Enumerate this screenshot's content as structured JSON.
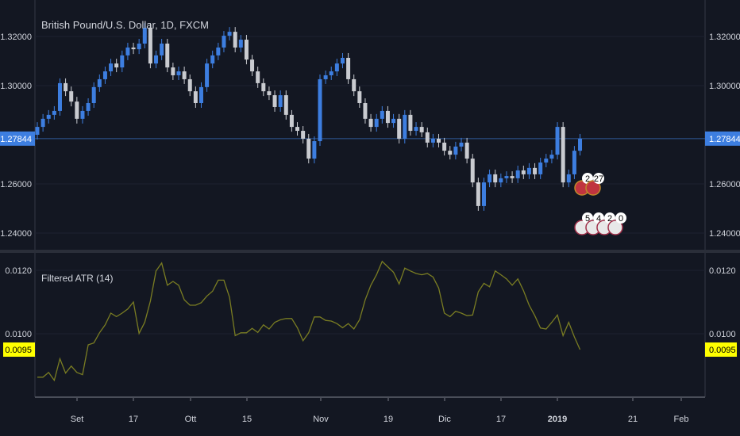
{
  "header": {
    "title": "British Pound/U.S. Dollar, 1D, FXCM"
  },
  "indicator": {
    "title": "Filtered ATR (14)"
  },
  "colors": {
    "background": "#131722",
    "up": "#3d7ee0",
    "down": "#c9cbd0",
    "atr_line": "#7a7d22",
    "last_price_bg": "#3d7ee0",
    "atr_label_bg": "#ffff00"
  },
  "events": {
    "gb": {
      "icon": "uk-flag-icon",
      "counts": [
        "2",
        "27"
      ]
    },
    "us": {
      "icon": "us-flag-icon",
      "counts": [
        "5",
        "4",
        "2",
        "0"
      ]
    }
  },
  "chart_data": [
    {
      "type": "candlestick",
      "title": "British Pound/U.S. Dollar, 1D, FXCM",
      "ylim": [
        1.232,
        1.334
      ],
      "yticks": [
        "1.32000",
        "1.30000",
        "1.26000",
        "1.24000"
      ],
      "last_price": "1.27844",
      "close": [
        1.2832,
        1.2865,
        1.2881,
        1.2897,
        1.301,
        1.2977,
        1.2935,
        1.2865,
        1.2897,
        1.2929,
        1.2994,
        1.3026,
        1.3058,
        1.309,
        1.3074,
        1.3123,
        1.3155,
        1.3148,
        1.3171,
        1.3235,
        1.309,
        1.3123,
        1.3171,
        1.3074,
        1.3042,
        1.3058,
        1.3026,
        1.2977,
        1.2929,
        1.2994,
        1.309,
        1.3123,
        1.3155,
        1.3203,
        1.3219,
        1.3155,
        1.3187,
        1.3106,
        1.3058,
        1.301,
        1.2977,
        1.2961,
        1.2913,
        1.2961,
        1.2881,
        1.2832,
        1.2816,
        1.2784,
        1.2703,
        1.2774,
        1.3026,
        1.3042,
        1.3058,
        1.309,
        1.3113,
        1.3026,
        1.2977,
        1.2929,
        1.2865,
        1.2832,
        1.2865,
        1.2897,
        1.2848,
        1.2865,
        1.2784,
        1.2881,
        1.2816,
        1.2832,
        1.281,
        1.2768,
        1.2784,
        1.2768,
        1.2735,
        1.2719,
        1.2752,
        1.2768,
        1.2703,
        1.2606,
        1.251,
        1.2606,
        1.2639,
        1.2606,
        1.2623,
        1.2632,
        1.2623,
        1.2655,
        1.2639,
        1.2665,
        1.2639,
        1.2687,
        1.2703,
        1.2719,
        1.2832,
        1.2606,
        1.2639,
        1.2735,
        1.2784
      ]
    },
    {
      "type": "line",
      "title": "Filtered ATR (14)",
      "ylim": [
        0.00815,
        0.01245
      ],
      "yticks": [
        "0.0120",
        "0.0100"
      ],
      "last_value": "0.0095",
      "values": [
        0.00863,
        0.00863,
        0.00878,
        0.00853,
        0.00921,
        0.00876,
        0.00898,
        0.00878,
        0.00871,
        0.00965,
        0.00971,
        0.01003,
        0.01028,
        0.01065,
        0.01054,
        0.01065,
        0.01078,
        0.011,
        0.01001,
        0.01036,
        0.01103,
        0.01198,
        0.01223,
        0.01153,
        0.01165,
        0.01153,
        0.01107,
        0.0109,
        0.0109,
        0.01098,
        0.01119,
        0.01134,
        0.01169,
        0.01169,
        0.01115,
        0.00994,
        0.01003,
        0.01003,
        0.01017,
        0.01004,
        0.01028,
        0.01015,
        0.01036,
        0.01044,
        0.01048,
        0.01048,
        0.01019,
        0.00978,
        0.01003,
        0.01053,
        0.01053,
        0.01042,
        0.0104,
        0.01032,
        0.01019,
        0.01032,
        0.01015,
        0.01044,
        0.01107,
        0.01153,
        0.01186,
        0.01228,
        0.01211,
        0.01194,
        0.01157,
        0.01207,
        0.01198,
        0.0119,
        0.01186,
        0.0119,
        0.01179,
        0.01144,
        0.01065,
        0.01054,
        0.01071,
        0.01065,
        0.01057,
        0.01059,
        0.01132,
        0.01159,
        0.01148,
        0.01198,
        0.01186,
        0.01173,
        0.01153,
        0.01173,
        0.01136,
        0.0109,
        0.01057,
        0.01018,
        0.01015,
        0.01036,
        0.01059,
        0.00994,
        0.01036,
        0.0099,
        0.0095
      ]
    }
  ],
  "xaxis": {
    "ticks": [
      "Set",
      "17",
      "Ott",
      "15",
      "Nov",
      "19",
      "Dic",
      "17",
      "2019",
      "21",
      "Feb"
    ]
  }
}
